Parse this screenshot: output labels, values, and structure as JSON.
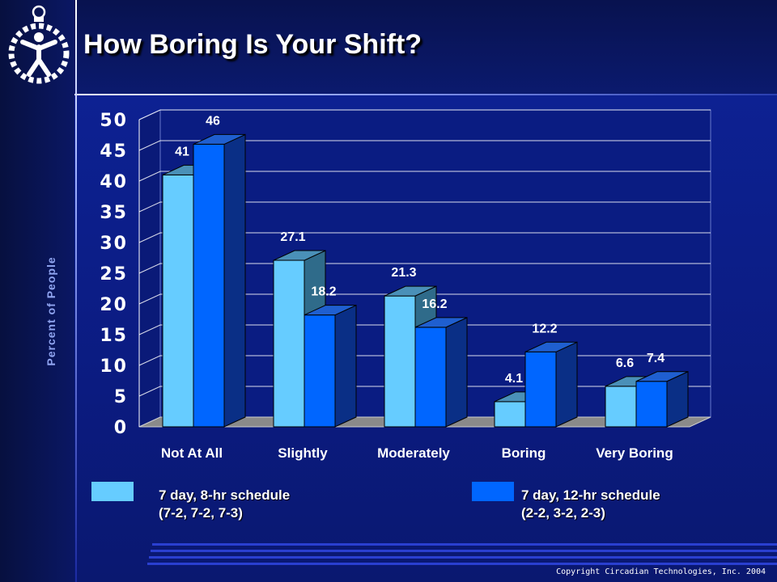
{
  "slide": {
    "title": "How Boring Is Your Shift?",
    "copyright": "Copyright Circadian Technologies, Inc. 2004"
  },
  "colors": {
    "series_a_front": "#66ccff",
    "series_b_front": "#0066ff"
  },
  "logo": {
    "icon": "circadian-figure-logo-icon"
  },
  "chart_data": {
    "type": "bar",
    "ylabel": "Percent of People",
    "ylim": [
      0,
      50
    ],
    "yticks": [
      0,
      5,
      10,
      15,
      20,
      25,
      30,
      35,
      40,
      45,
      50
    ],
    "categories": [
      "Not At All",
      "Slightly",
      "Moderately",
      "Boring",
      "Very Boring"
    ],
    "series": [
      {
        "name": "7 day, 8-hr  schedule\n(7-2, 7-2, 7-3)",
        "values": [
          41,
          27.1,
          21.3,
          4.1,
          6.6
        ],
        "color": "#66ccff"
      },
      {
        "name": "7 day, 12-hr schedule\n(2-2, 3-2, 2-3)",
        "values": [
          46,
          18.2,
          16.2,
          12.2,
          7.4
        ],
        "color": "#0066ff"
      }
    ],
    "data_labels": [
      [
        "41",
        "27.1",
        "21.3",
        "4.1",
        "6.6"
      ],
      [
        "46",
        "18.2",
        "16.2",
        "12.2",
        "7.4"
      ]
    ],
    "grid": true,
    "legend": "bottom"
  }
}
